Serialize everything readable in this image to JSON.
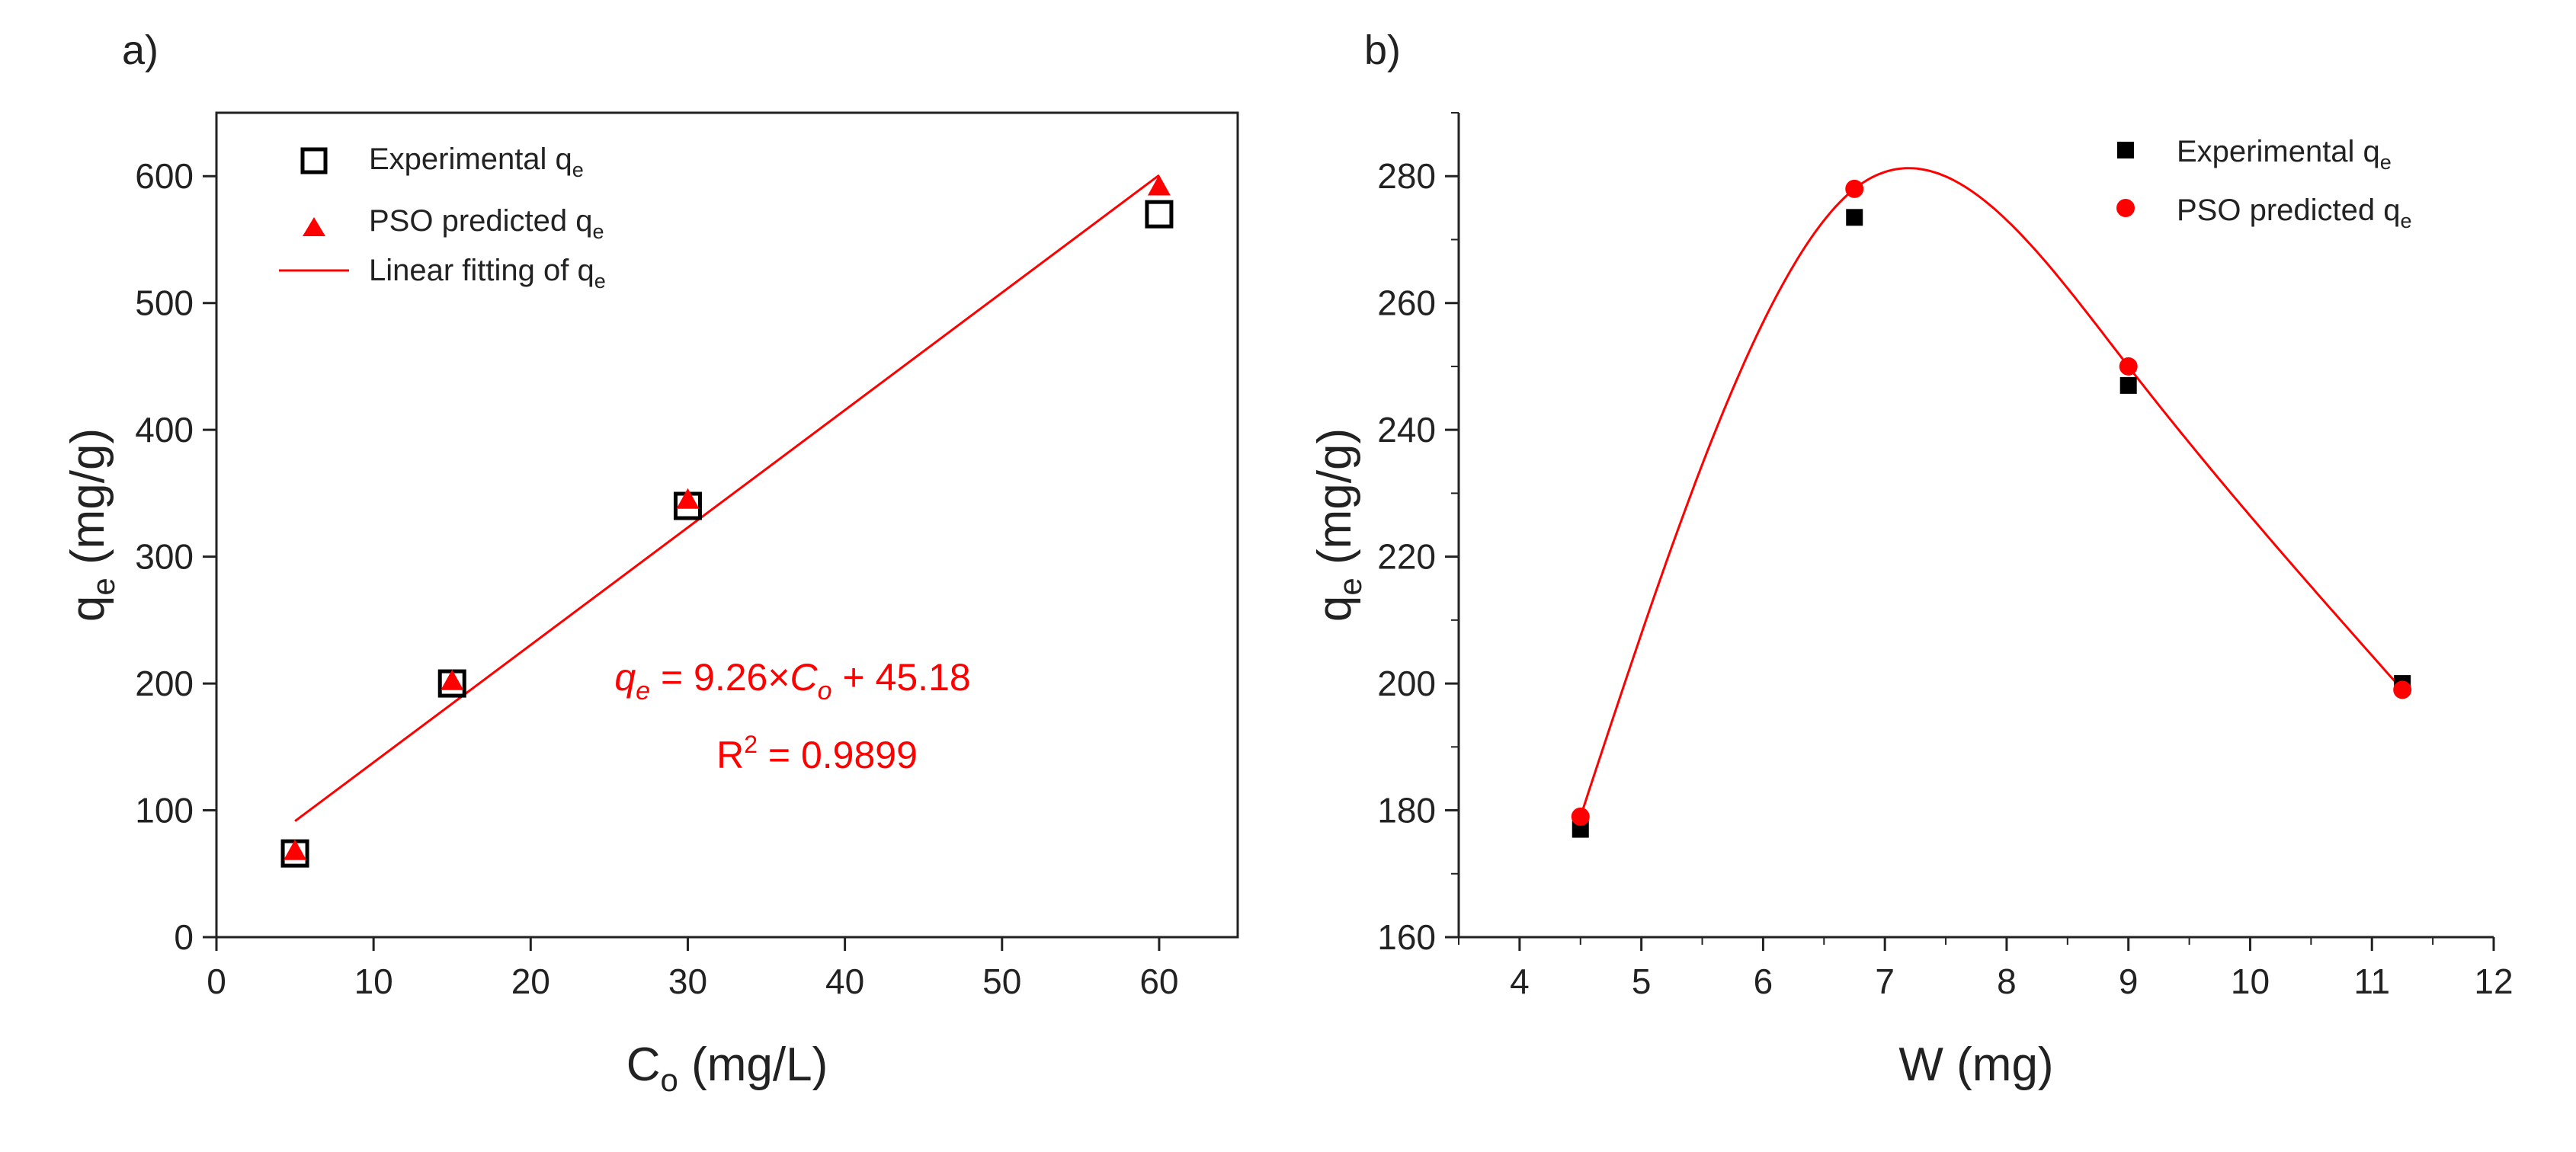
{
  "chart_data": [
    {
      "type": "scatter",
      "panel_label": "a)",
      "xlabel": {
        "main": "C",
        "sub": "o",
        "rest": " (mg/L)"
      },
      "ylabel": {
        "main": "q",
        "sub": "e",
        "rest": " (mg/g)"
      },
      "xlim": [
        0,
        65
      ],
      "ylim": [
        0,
        650
      ],
      "xticks": [
        0,
        10,
        20,
        30,
        40,
        50,
        60
      ],
      "yticks": [
        0,
        100,
        200,
        300,
        400,
        500,
        600
      ],
      "series": [
        {
          "name": "Experimental",
          "sub": "e",
          "prefix": "Experimental q",
          "marker": "open-square",
          "color": "#000000",
          "x": [
            5,
            15,
            30,
            60
          ],
          "y": [
            66,
            200,
            340,
            570
          ]
        },
        {
          "name": "PSO predicted",
          "sub": "e",
          "prefix": "PSO predicted q",
          "marker": "triangle",
          "color": "#ff0000",
          "x": [
            5,
            15,
            30,
            60
          ],
          "y": [
            68,
            202,
            345,
            592
          ]
        }
      ],
      "fit": {
        "prefix": "Linear fitting of q",
        "sub": "e",
        "color": "#ff0000",
        "slope": 9.26,
        "intercept": 45.18,
        "x_range": [
          5,
          60
        ]
      },
      "legend_position": "top-left",
      "annotation": {
        "eq_lhs": "q",
        "eq_lhs_sub": "e",
        "eq_mid": " = 9.26×",
        "eq_var": "C",
        "eq_var_sub": "o",
        "eq_tail": " + 45.18",
        "r2_base": "R",
        "r2_sup": "2",
        "r2_tail": " = 0.9899",
        "color": "#ff0000"
      }
    },
    {
      "type": "scatter",
      "panel_label": "b)",
      "xlabel": {
        "main": "W (mg)"
      },
      "ylabel": {
        "main": "q",
        "sub": "e",
        "rest": " (mg/g)"
      },
      "xlim": [
        3.5,
        12
      ],
      "ylim": [
        160,
        290
      ],
      "xticks": [
        4,
        5,
        6,
        7,
        8,
        9,
        10,
        11,
        12
      ],
      "yticks": [
        160,
        180,
        200,
        220,
        240,
        260,
        280
      ],
      "series": [
        {
          "name": "Experimental",
          "sub": "e",
          "prefix": "Experimental q",
          "marker": "filled-square",
          "color": "#000000",
          "x": [
            4.5,
            6.75,
            9,
            11.25
          ],
          "y": [
            177,
            273.5,
            247,
            200
          ]
        },
        {
          "name": "PSO predicted",
          "sub": "e",
          "prefix": "PSO predicted q",
          "marker": "circle",
          "color": "#ff0000",
          "x": [
            4.5,
            6.75,
            9,
            11.25
          ],
          "y": [
            179,
            278,
            250,
            199
          ]
        }
      ],
      "fit": {
        "type": "spline",
        "color": "#ff0000"
      },
      "legend_position": "top-right"
    }
  ]
}
